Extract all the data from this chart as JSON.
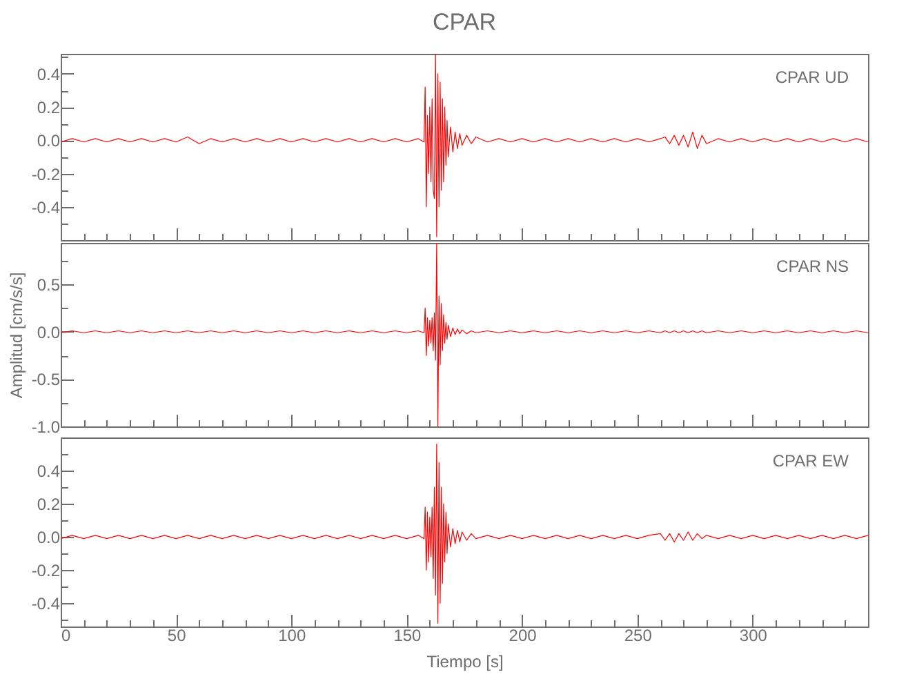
{
  "chart_data": [
    {
      "type": "line",
      "title": "CPAR",
      "annotations": [
        "CPAR   UD"
      ],
      "tick_labels": "y",
      "xlim": [
        0,
        350
      ],
      "ylim": [
        -0.6,
        0.52
      ],
      "xticks": [
        0,
        {
          "value": 10,
          "label": null
        },
        {
          "value": 20,
          "label": null
        },
        {
          "value": 30,
          "label": null
        },
        {
          "value": 40,
          "label": null
        },
        50,
        {
          "value": 60,
          "label": null
        },
        {
          "value": 70,
          "label": null
        },
        {
          "value": 80,
          "label": null
        },
        {
          "value": 90,
          "label": null
        },
        100,
        {
          "value": 110,
          "label": null
        },
        {
          "value": 120,
          "label": null
        },
        {
          "value": 130,
          "label": null
        },
        {
          "value": 140,
          "label": null
        },
        150,
        {
          "value": 160,
          "label": null
        },
        {
          "value": 170,
          "label": null
        },
        {
          "value": 180,
          "label": null
        },
        {
          "value": 190,
          "label": null
        },
        200,
        {
          "value": 210,
          "label": null
        },
        {
          "value": 220,
          "label": null
        },
        {
          "value": 230,
          "label": null
        },
        {
          "value": 240,
          "label": null
        },
        250,
        {
          "value": 260,
          "label": null
        },
        {
          "value": 270,
          "label": null
        },
        {
          "value": 280,
          "label": null
        },
        {
          "value": 290,
          "label": null
        },
        300,
        {
          "value": 310,
          "label": null
        },
        {
          "value": 320,
          "label": null
        },
        {
          "value": 330,
          "label": null
        },
        {
          "value": 340,
          "label": null
        }
      ],
      "yticks": [
        {
          "value": -0.5,
          "label": null
        },
        -0.4,
        {
          "value": -0.3,
          "label": null
        },
        -0.2,
        {
          "value": -0.1,
          "label": null
        },
        {
          "value": 0,
          "label": "0.0"
        },
        {
          "value": 0.1,
          "label": null
        },
        0.2,
        {
          "value": 0.3,
          "label": null
        },
        0.4,
        {
          "value": 0.5,
          "label": null
        }
      ],
      "x": [
        0,
        5,
        10,
        15,
        20,
        25,
        30,
        35,
        40,
        45,
        50,
        55,
        60,
        65,
        70,
        75,
        80,
        85,
        90,
        95,
        100,
        105,
        110,
        115,
        120,
        125,
        130,
        135,
        140,
        145,
        150,
        155,
        157.5,
        158,
        158.5,
        159,
        159.5,
        160,
        160.5,
        161,
        161.5,
        162,
        162.5,
        163,
        163.5,
        164,
        164.5,
        165,
        165.5,
        166,
        166.5,
        167,
        167.5,
        168,
        169,
        170,
        171,
        172,
        173,
        174,
        176,
        178,
        180,
        185,
        190,
        195,
        200,
        205,
        210,
        215,
        220,
        225,
        230,
        235,
        240,
        245,
        250,
        255,
        260,
        262,
        264,
        266,
        268,
        270,
        272,
        274,
        276,
        278,
        280,
        285,
        290,
        295,
        300,
        305,
        310,
        315,
        320,
        325,
        330,
        335,
        340,
        345,
        350
      ],
      "series": [
        {
          "color": "#ff0000",
          "values": [
            -0.01,
            0.01,
            -0.01,
            0.01,
            -0.01,
            0.01,
            -0.01,
            0.01,
            -0.01,
            0.01,
            -0.01,
            0.02,
            -0.02,
            0.01,
            -0.01,
            0.01,
            -0.01,
            0.01,
            -0.01,
            0.01,
            -0.01,
            0.01,
            -0.01,
            0.01,
            -0.01,
            0.01,
            -0.01,
            0.01,
            -0.01,
            0.01,
            -0.01,
            0.01,
            -0.01,
            0.32,
            -0.4,
            0.15,
            -0.2,
            0.2,
            -0.25,
            0.25,
            -0.3,
            -0.35,
            0.52,
            -0.58,
            0.4,
            -0.4,
            0.35,
            -0.3,
            0.25,
            -0.25,
            0.2,
            -0.15,
            0.12,
            -0.1,
            0.08,
            -0.07,
            0.05,
            -0.05,
            0.04,
            -0.03,
            0.03,
            -0.02,
            0.02,
            -0.01,
            0.01,
            -0.01,
            0.01,
            -0.01,
            0.01,
            -0.01,
            0.01,
            -0.01,
            0.01,
            -0.01,
            0.01,
            -0.01,
            0.01,
            -0.01,
            0.01,
            0.02,
            -0.02,
            0.03,
            -0.03,
            0.03,
            -0.04,
            0.05,
            -0.05,
            0.03,
            -0.02,
            0.01,
            -0.01,
            0.01,
            -0.01,
            0.01,
            -0.01,
            0.01,
            -0.01,
            0.01,
            -0.01,
            0.01,
            -0.01,
            0.01,
            -0.01
          ]
        }
      ]
    },
    {
      "type": "line",
      "ylabel": "Amplitud  [cm/s/s]",
      "annotations": [
        "CPAR    NS"
      ],
      "tick_labels": "y",
      "xlim": [
        0,
        350
      ],
      "ylim": [
        -1.0,
        0.94
      ],
      "xticks": [
        0,
        {
          "value": 10,
          "label": null
        },
        {
          "value": 20,
          "label": null
        },
        {
          "value": 30,
          "label": null
        },
        {
          "value": 40,
          "label": null
        },
        50,
        {
          "value": 60,
          "label": null
        },
        {
          "value": 70,
          "label": null
        },
        {
          "value": 80,
          "label": null
        },
        {
          "value": 90,
          "label": null
        },
        100,
        {
          "value": 110,
          "label": null
        },
        {
          "value": 120,
          "label": null
        },
        {
          "value": 130,
          "label": null
        },
        {
          "value": 140,
          "label": null
        },
        150,
        {
          "value": 160,
          "label": null
        },
        {
          "value": 170,
          "label": null
        },
        {
          "value": 180,
          "label": null
        },
        {
          "value": 190,
          "label": null
        },
        200,
        {
          "value": 210,
          "label": null
        },
        {
          "value": 220,
          "label": null
        },
        {
          "value": 230,
          "label": null
        },
        {
          "value": 240,
          "label": null
        },
        250,
        {
          "value": 260,
          "label": null
        },
        {
          "value": 270,
          "label": null
        },
        {
          "value": 280,
          "label": null
        },
        {
          "value": 290,
          "label": null
        },
        300,
        {
          "value": 310,
          "label": null
        },
        {
          "value": 320,
          "label": null
        },
        {
          "value": 330,
          "label": null
        },
        {
          "value": 340,
          "label": null
        }
      ],
      "yticks": [
        {
          "value": -1,
          "label": "-1.0"
        },
        {
          "value": -0.75,
          "label": null
        },
        -0.5,
        {
          "value": -0.25,
          "label": null
        },
        {
          "value": 0,
          "label": "0.0"
        },
        {
          "value": 0.25,
          "label": null
        },
        0.5,
        {
          "value": 0.75,
          "label": null
        }
      ],
      "x": [
        0,
        5,
        10,
        15,
        20,
        25,
        30,
        35,
        40,
        45,
        50,
        55,
        60,
        65,
        70,
        75,
        80,
        85,
        90,
        95,
        100,
        105,
        110,
        115,
        120,
        125,
        130,
        135,
        140,
        145,
        150,
        155,
        157.5,
        158,
        158.5,
        159,
        159.5,
        160,
        160.5,
        161,
        161.5,
        162,
        162.5,
        163,
        163.5,
        164,
        164.5,
        165,
        165.5,
        166,
        166.5,
        167,
        167.5,
        168,
        169,
        170,
        171,
        172,
        173,
        174,
        176,
        178,
        180,
        185,
        190,
        195,
        200,
        205,
        210,
        215,
        220,
        225,
        230,
        235,
        240,
        245,
        250,
        255,
        260,
        262,
        264,
        266,
        268,
        270,
        272,
        274,
        276,
        278,
        280,
        285,
        290,
        295,
        300,
        305,
        310,
        315,
        320,
        325,
        330,
        335,
        340,
        345,
        350
      ],
      "series": [
        {
          "color": "#ff0000",
          "values": [
            -0.01,
            0.01,
            -0.01,
            0.01,
            -0.01,
            0.01,
            -0.01,
            0.01,
            -0.01,
            0.01,
            -0.01,
            0.01,
            -0.01,
            0.01,
            -0.01,
            0.01,
            -0.01,
            0.01,
            -0.01,
            0.01,
            -0.01,
            0.01,
            -0.01,
            0.01,
            -0.01,
            0.01,
            -0.01,
            0.01,
            -0.01,
            0.01,
            -0.01,
            0.01,
            -0.01,
            0.25,
            -0.25,
            0.15,
            -0.15,
            0.12,
            -0.12,
            0.15,
            -0.2,
            0.2,
            -0.3,
            0.94,
            -1.0,
            0.38,
            -0.35,
            0.3,
            -0.2,
            0.18,
            -0.12,
            0.1,
            -0.08,
            0.07,
            -0.05,
            0.04,
            -0.03,
            0.03,
            -0.02,
            0.02,
            -0.02,
            0.01,
            -0.01,
            0.01,
            -0.01,
            0.01,
            -0.01,
            0.01,
            -0.01,
            0.01,
            -0.01,
            0.01,
            -0.01,
            0.01,
            -0.01,
            0.01,
            -0.01,
            0.01,
            -0.01,
            0.01,
            -0.01,
            0.01,
            -0.01,
            0.01,
            -0.01,
            0.01,
            -0.01,
            0.01,
            -0.01,
            0.01,
            -0.01,
            0.01,
            -0.01,
            0.01,
            -0.01,
            0.01,
            -0.01,
            0.01,
            -0.01,
            0.01,
            -0.01,
            0.01,
            -0.01
          ]
        }
      ]
    },
    {
      "type": "line",
      "xlabel": "Tiempo  [s]",
      "annotations": [
        "CPAR    EW"
      ],
      "xlim": [
        0,
        350
      ],
      "ylim": [
        -0.54,
        0.6
      ],
      "xticks": [
        0,
        {
          "value": 10,
          "label": null
        },
        {
          "value": 20,
          "label": null
        },
        {
          "value": 30,
          "label": null
        },
        {
          "value": 40,
          "label": null
        },
        50,
        {
          "value": 60,
          "label": null
        },
        {
          "value": 70,
          "label": null
        },
        {
          "value": 80,
          "label": null
        },
        {
          "value": 90,
          "label": null
        },
        100,
        {
          "value": 110,
          "label": null
        },
        {
          "value": 120,
          "label": null
        },
        {
          "value": 130,
          "label": null
        },
        {
          "value": 140,
          "label": null
        },
        150,
        {
          "value": 160,
          "label": null
        },
        {
          "value": 170,
          "label": null
        },
        {
          "value": 180,
          "label": null
        },
        {
          "value": 190,
          "label": null
        },
        200,
        {
          "value": 210,
          "label": null
        },
        {
          "value": 220,
          "label": null
        },
        {
          "value": 230,
          "label": null
        },
        {
          "value": 240,
          "label": null
        },
        250,
        {
          "value": 260,
          "label": null
        },
        {
          "value": 270,
          "label": null
        },
        {
          "value": 280,
          "label": null
        },
        {
          "value": 290,
          "label": null
        },
        300,
        {
          "value": 310,
          "label": null
        },
        {
          "value": 320,
          "label": null
        },
        {
          "value": 330,
          "label": null
        },
        {
          "value": 340,
          "label": null
        }
      ],
      "yticks": [
        {
          "value": -0.5,
          "label": null
        },
        -0.4,
        {
          "value": -0.3,
          "label": null
        },
        -0.2,
        {
          "value": -0.1,
          "label": null
        },
        {
          "value": 0,
          "label": "0.0"
        },
        {
          "value": 0.1,
          "label": null
        },
        0.2,
        {
          "value": 0.3,
          "label": null
        },
        0.4,
        {
          "value": 0.5,
          "label": null
        }
      ],
      "x": [
        0,
        5,
        10,
        15,
        20,
        25,
        30,
        35,
        40,
        45,
        50,
        55,
        60,
        65,
        70,
        75,
        80,
        85,
        90,
        95,
        100,
        105,
        110,
        115,
        120,
        125,
        130,
        135,
        140,
        145,
        150,
        155,
        157.5,
        158,
        158.5,
        159,
        159.5,
        160,
        160.5,
        161,
        161.5,
        162,
        162.5,
        163,
        163.5,
        164,
        164.5,
        165,
        165.5,
        166,
        166.5,
        167,
        167.5,
        168,
        169,
        170,
        171,
        172,
        173,
        174,
        176,
        178,
        180,
        185,
        190,
        195,
        200,
        205,
        210,
        215,
        220,
        225,
        230,
        235,
        240,
        245,
        250,
        255,
        260,
        262,
        264,
        266,
        268,
        270,
        272,
        274,
        276,
        278,
        280,
        285,
        290,
        295,
        300,
        305,
        310,
        315,
        320,
        325,
        330,
        335,
        340,
        345,
        350
      ],
      "series": [
        {
          "color": "#ff0000",
          "values": [
            -0.01,
            0.01,
            -0.01,
            0.01,
            -0.01,
            0.01,
            -0.01,
            0.01,
            -0.01,
            0.01,
            -0.01,
            0.01,
            -0.01,
            0.01,
            -0.01,
            0.01,
            -0.01,
            0.01,
            -0.01,
            0.01,
            -0.01,
            0.01,
            -0.01,
            0.01,
            -0.01,
            0.01,
            -0.01,
            0.01,
            -0.01,
            0.01,
            -0.01,
            0.01,
            -0.01,
            0.18,
            -0.2,
            0.15,
            -0.15,
            0.12,
            -0.12,
            0.18,
            -0.25,
            0.3,
            -0.35,
            0.56,
            -0.52,
            0.45,
            -0.4,
            0.3,
            -0.28,
            0.2,
            -0.15,
            0.15,
            -0.1,
            0.08,
            -0.06,
            0.05,
            -0.04,
            0.04,
            -0.03,
            0.03,
            -0.02,
            0.02,
            -0.01,
            0.01,
            -0.01,
            0.01,
            -0.01,
            0.01,
            -0.01,
            0.01,
            -0.01,
            0.01,
            -0.01,
            0.01,
            -0.01,
            0.01,
            -0.01,
            0.01,
            0.02,
            -0.02,
            0.02,
            -0.03,
            0.02,
            -0.02,
            0.03,
            -0.02,
            0.02,
            -0.01,
            0.01,
            -0.01,
            0.01,
            -0.01,
            0.01,
            -0.01,
            0.01,
            -0.01,
            0.01,
            -0.01,
            0.01,
            -0.01,
            0.01,
            -0.01,
            0.01
          ]
        }
      ]
    }
  ]
}
